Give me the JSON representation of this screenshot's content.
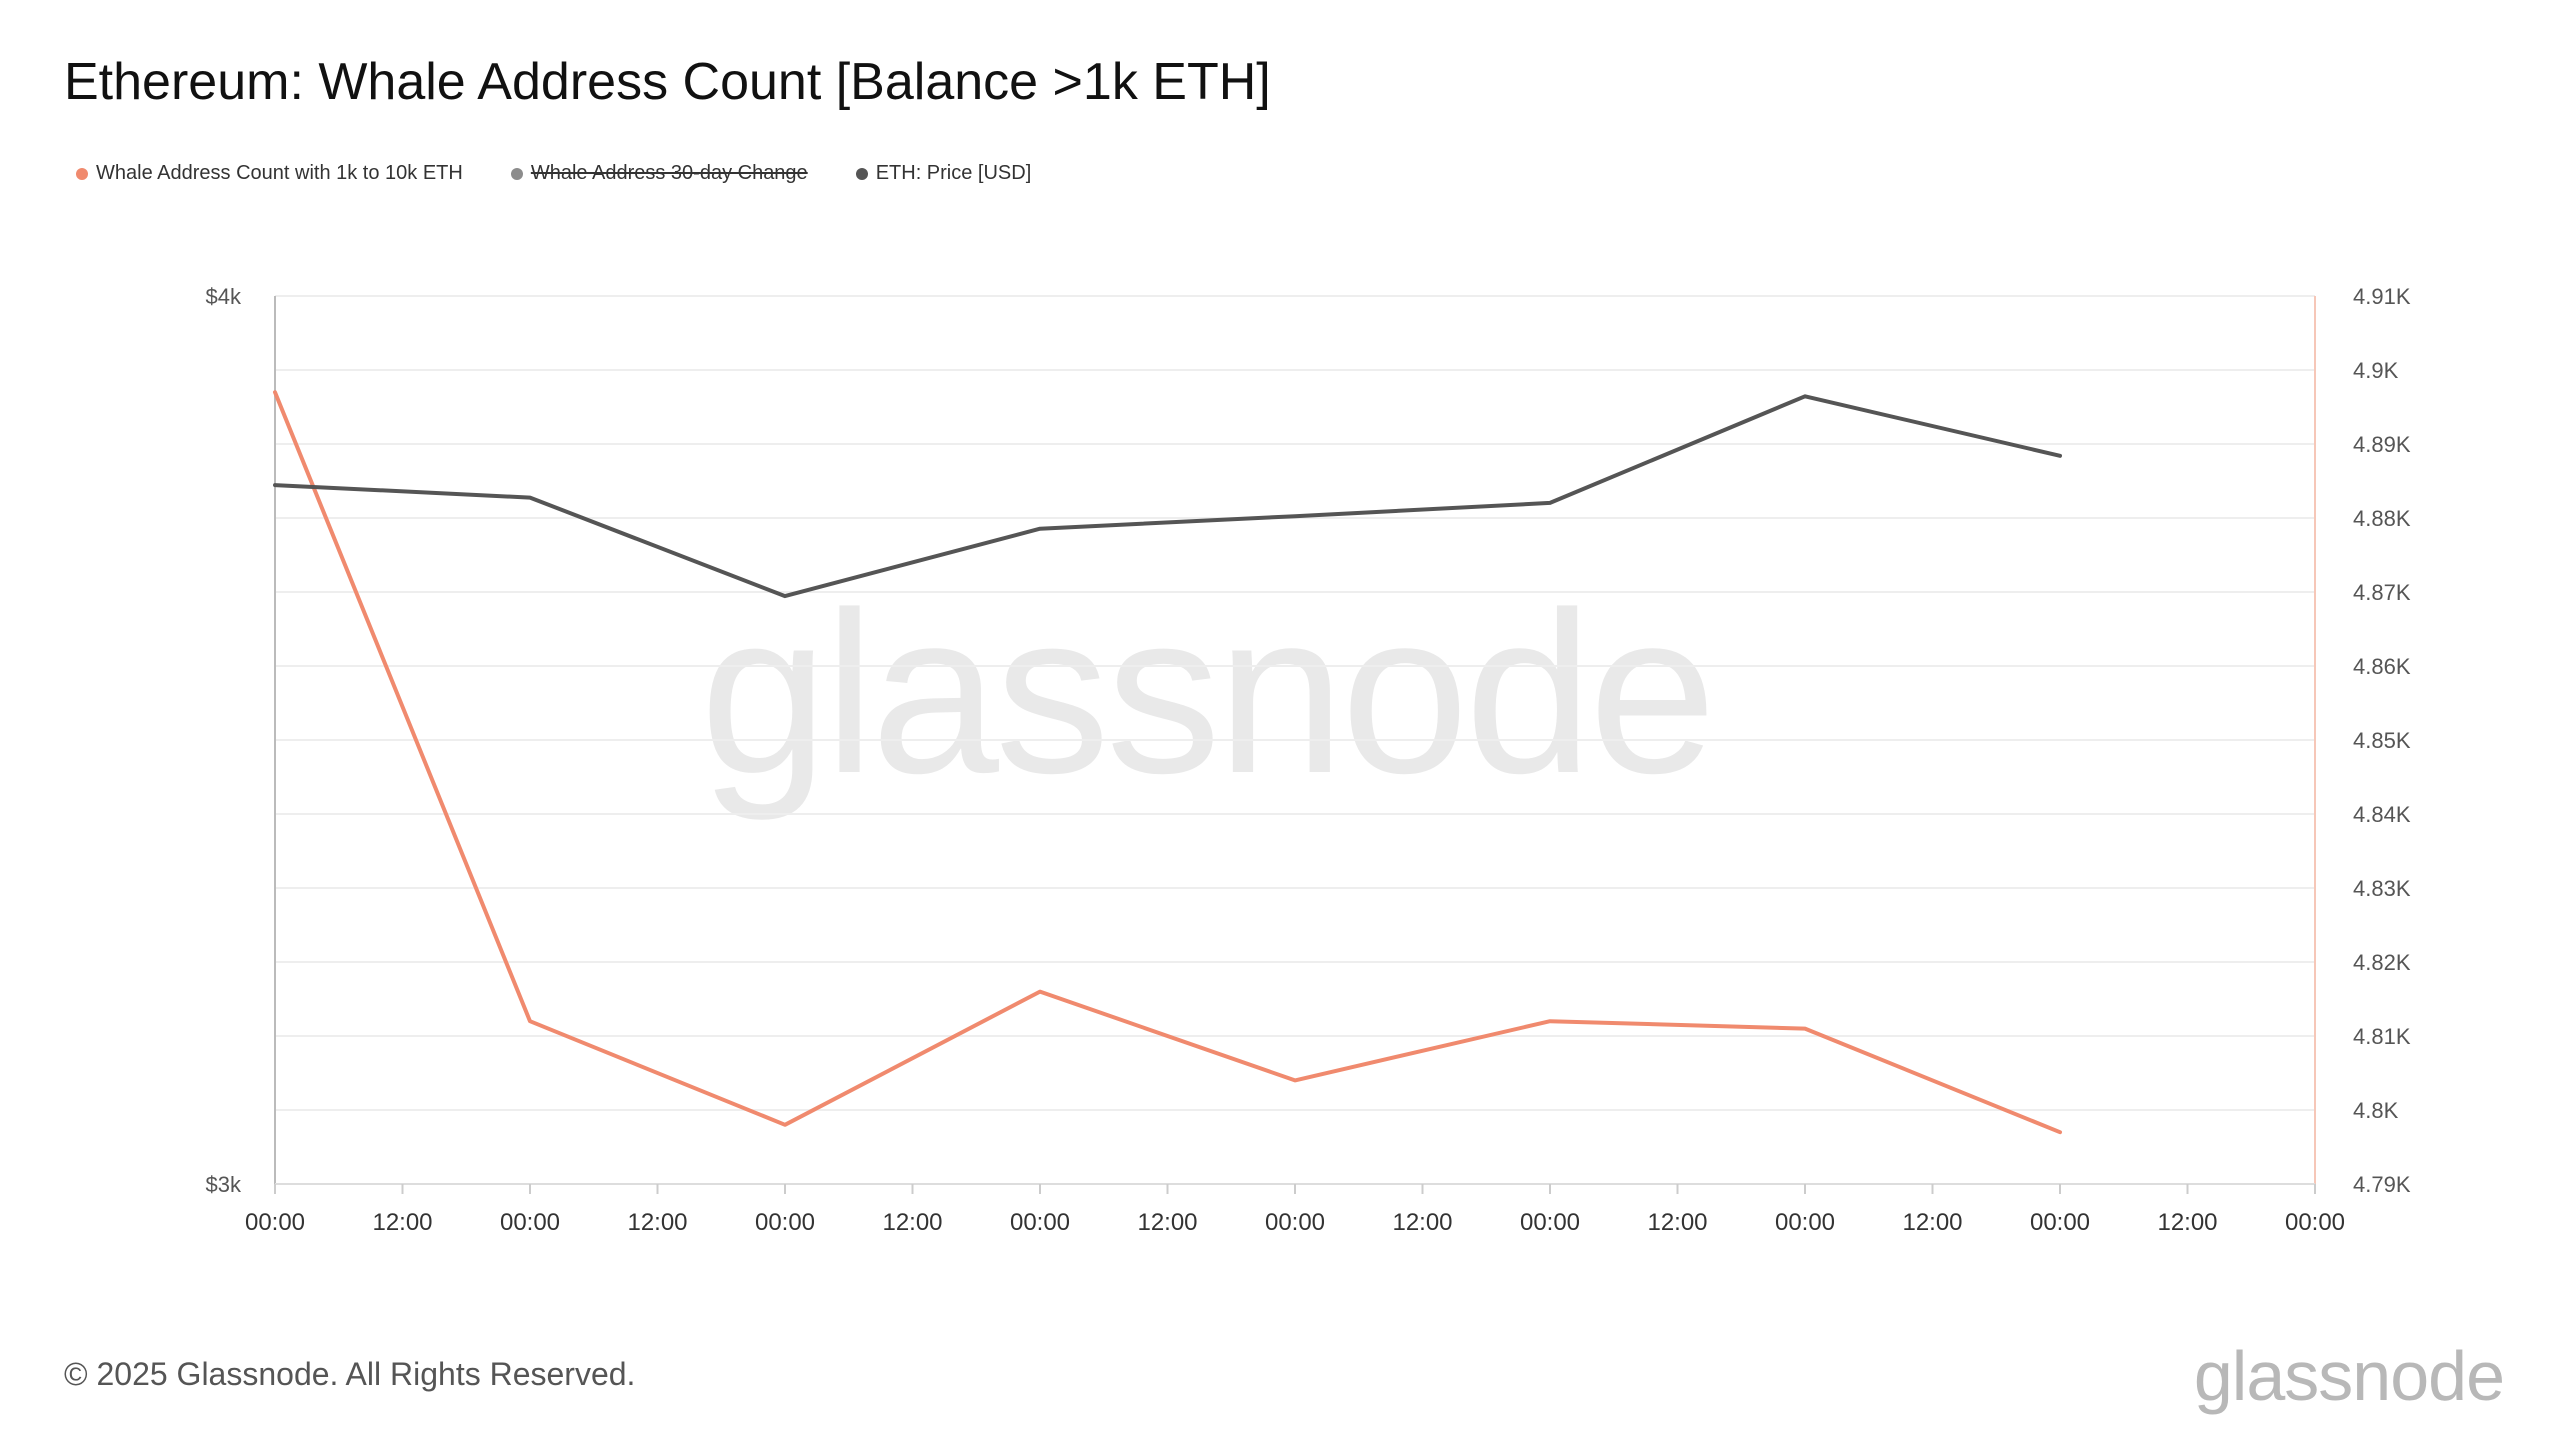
{
  "header": {
    "title": "Ethereum: Whale Address Count [Balance >1k ETH]"
  },
  "legend": {
    "items": [
      {
        "label": "Whale Address Count with 1k to 10k ETH",
        "color": "#f08a6e",
        "hidden": false
      },
      {
        "label": "Whale Address 30-day Change",
        "color": "#8c8c8c",
        "hidden": true
      },
      {
        "label": "ETH: Price [USD]",
        "color": "#555555",
        "hidden": false
      }
    ]
  },
  "footer": {
    "copyright": "© 2025 Glassnode. All Rights Reserved.",
    "logo": "glassnode"
  },
  "watermark": "glassnode",
  "chart_data": {
    "type": "line",
    "title": "Ethereum: Whale Address Count [Balance >1k ETH]",
    "x_tick_labels": [
      "00:00",
      "12:00",
      "00:00",
      "12:00",
      "00:00",
      "12:00",
      "00:00",
      "12:00",
      "00:00",
      "12:00",
      "00:00",
      "12:00",
      "00:00",
      "12:00",
      "00:00",
      "12:00",
      "00:00"
    ],
    "left_axis": {
      "ticks": [
        "$3k",
        "$4k"
      ],
      "min": 3000,
      "max": 4000
    },
    "right_axis": {
      "ticks": [
        "4.79K",
        "4.8K",
        "4.81K",
        "4.82K",
        "4.83K",
        "4.84K",
        "4.85K",
        "4.86K",
        "4.87K",
        "4.88K",
        "4.89K",
        "4.9K",
        "4.91K"
      ],
      "min": 4790,
      "max": 4910
    },
    "grid": true,
    "series": [
      {
        "name": "Whale Address Count with 1k to 10k ETH",
        "axis": "right",
        "color": "#f08a6e",
        "x_index": [
          0,
          2,
          4,
          6,
          8,
          10,
          12,
          14
        ],
        "values": [
          4897,
          4812,
          4798,
          4816,
          4804,
          4812,
          4811,
          4797
        ]
      },
      {
        "name": "ETH: Price [USD]",
        "axis": "left",
        "color": "#555555",
        "x_index": [
          0,
          2,
          4,
          6,
          8,
          10,
          12,
          14
        ],
        "values": [
          3787,
          3773,
          3662,
          3738,
          3752,
          3767,
          3887,
          3820
        ]
      }
    ]
  }
}
